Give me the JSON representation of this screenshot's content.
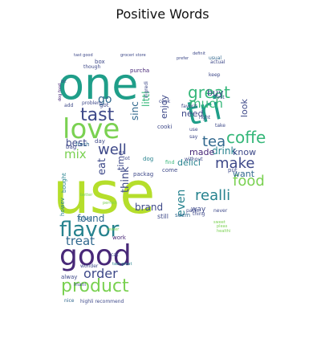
{
  "title": "Positive Words",
  "palette": {
    "yellow_green": "#b5de2b",
    "light_green": "#7ad151",
    "green": "#35b779",
    "teal": "#1f9e89",
    "blue_teal": "#26828e",
    "blue": "#31688e",
    "indigo": "#3e4989",
    "dark_purple": "#482878",
    "near_black": "#440154"
  },
  "words": [
    {
      "text": "one",
      "size": 54,
      "color": "teal"
    },
    {
      "text": "use",
      "size": 72,
      "color": "yellow_green"
    },
    {
      "text": "tri",
      "size": 40,
      "color": "teal"
    },
    {
      "text": "love",
      "size": 34,
      "color": "light_green"
    },
    {
      "text": "good",
      "size": 36,
      "color": "dark_purple"
    },
    {
      "text": "flavor",
      "size": 26,
      "color": "blue_teal"
    },
    {
      "text": "product",
      "size": 22,
      "color": "light_green"
    },
    {
      "text": "great",
      "size": 20,
      "color": "green"
    },
    {
      "text": "tast",
      "size": 22,
      "color": "indigo"
    },
    {
      "text": "coffe",
      "size": 20,
      "color": "green"
    },
    {
      "text": "tea",
      "size": 18,
      "color": "blue"
    },
    {
      "text": "make",
      "size": 18,
      "color": "indigo"
    },
    {
      "text": "food",
      "size": 18,
      "color": "light_green"
    },
    {
      "text": "realli",
      "size": 18,
      "color": "blue_teal"
    },
    {
      "text": "well",
      "size": 18,
      "color": "indigo"
    },
    {
      "text": "order",
      "size": 16,
      "color": "indigo"
    },
    {
      "text": "treat",
      "size": 15,
      "color": "blue"
    },
    {
      "text": "much",
      "size": 15,
      "color": "green"
    },
    {
      "text": "mix",
      "size": 15,
      "color": "light_green"
    },
    {
      "text": "even",
      "size": 14,
      "color": "blue_teal"
    },
    {
      "text": "found",
      "size": 12,
      "color": "blue"
    },
    {
      "text": "brand",
      "size": 12,
      "color": "indigo"
    },
    {
      "text": "think",
      "size": 13,
      "color": "indigo"
    },
    {
      "text": "eat",
      "size": 13,
      "color": "indigo"
    },
    {
      "text": "drink",
      "size": 12,
      "color": "blue_teal"
    },
    {
      "text": "made",
      "size": 11,
      "color": "dark_purple"
    },
    {
      "text": "delici",
      "size": 11,
      "color": "blue_teal"
    },
    {
      "text": "know",
      "size": 11,
      "color": "indigo"
    },
    {
      "text": "best",
      "size": 12,
      "color": "indigo"
    },
    {
      "text": "want",
      "size": 11,
      "color": "blue"
    },
    {
      "text": "enjoy",
      "size": 11,
      "color": "indigo"
    },
    {
      "text": "go",
      "size": 14,
      "color": "blue"
    },
    {
      "text": "sinc",
      "size": 12,
      "color": "blue"
    },
    {
      "text": "littl",
      "size": 12,
      "color": "green"
    },
    {
      "text": "need",
      "size": 11,
      "color": "indigo"
    },
    {
      "text": "buy",
      "size": 11,
      "color": "indigo"
    },
    {
      "text": "time",
      "size": 11,
      "color": "indigo"
    },
    {
      "text": "look",
      "size": 11,
      "color": "indigo"
    },
    {
      "text": "way",
      "size": 9,
      "color": "indigo"
    },
    {
      "text": "seem",
      "size": 7,
      "color": "blue"
    },
    {
      "text": "give",
      "size": 8,
      "color": "blue"
    },
    {
      "text": "still",
      "size": 8,
      "color": "indigo"
    },
    {
      "text": "work",
      "size": 7,
      "color": "dark_purple"
    },
    {
      "text": "packag",
      "size": 7,
      "color": "indigo"
    },
    {
      "text": "come",
      "size": 7,
      "color": "indigo"
    },
    {
      "text": "bought",
      "size": 7,
      "color": "blue_teal"
    },
    {
      "text": "howev",
      "size": 7,
      "color": "blue_teal"
    },
    {
      "text": "put",
      "size": 7,
      "color": "indigo"
    },
    {
      "text": "cooki",
      "size": 7,
      "color": "indigo"
    },
    {
      "text": "bag",
      "size": 7,
      "color": "indigo"
    },
    {
      "text": "fresh",
      "size": 7,
      "color": "blue"
    },
    {
      "text": "dog",
      "size": 7,
      "color": "blue_teal"
    },
    {
      "text": "day",
      "size": 7,
      "color": "indigo"
    },
    {
      "text": "got",
      "size": 7,
      "color": "indigo"
    },
    {
      "text": "add",
      "size": 6,
      "color": "indigo"
    },
    {
      "text": "box",
      "size": 7,
      "color": "indigo"
    },
    {
      "text": "purcha",
      "size": 7,
      "color": "dark_purple"
    },
    {
      "text": "though",
      "size": 6,
      "color": "indigo"
    },
    {
      "text": "problem",
      "size": 6,
      "color": "indigo"
    },
    {
      "text": "alway",
      "size": 7,
      "color": "indigo"
    },
    {
      "text": "wonder",
      "size": 6,
      "color": "indigo"
    },
    {
      "text": "nice",
      "size": 6,
      "color": "blue"
    },
    {
      "text": "highli recommend",
      "size": 6,
      "color": "indigo"
    },
    {
      "text": "tast great",
      "size": 5,
      "color": "blue_teal"
    },
    {
      "text": "mani",
      "size": 6,
      "color": "indigo"
    },
    {
      "text": "cat",
      "size": 6,
      "color": "indigo"
    },
    {
      "text": "lot",
      "size": 6,
      "color": "indigo"
    },
    {
      "text": "find",
      "size": 6,
      "color": "green"
    },
    {
      "text": "first",
      "size": 6,
      "color": "indigo"
    },
    {
      "text": "take",
      "size": 6,
      "color": "indigo"
    },
    {
      "text": "use",
      "size": 6,
      "color": "indigo"
    },
    {
      "text": "thing",
      "size": 6,
      "color": "indigo"
    },
    {
      "text": "without",
      "size": 6,
      "color": "indigo"
    },
    {
      "text": "never",
      "size": 6,
      "color": "indigo"
    },
    {
      "text": "say",
      "size": 6,
      "color": "indigo"
    },
    {
      "text": "actual",
      "size": 6,
      "color": "indigo"
    },
    {
      "text": "keep",
      "size": 6,
      "color": "indigo"
    },
    {
      "text": "usual",
      "size": 6,
      "color": "blue"
    },
    {
      "text": "ingredi",
      "size": 6,
      "color": "indigo"
    },
    {
      "text": "favorit",
      "size": 6,
      "color": "indigo"
    },
    {
      "text": "right",
      "size": 6,
      "color": "indigo"
    },
    {
      "text": "cook",
      "size": 6,
      "color": "indigo"
    },
    {
      "text": "pack",
      "size": 6,
      "color": "indigo"
    },
    {
      "text": "definit",
      "size": 5,
      "color": "indigo"
    },
    {
      "text": "prefer",
      "size": 5,
      "color": "indigo"
    },
    {
      "text": "groceri store",
      "size": 5,
      "color": "indigo"
    },
    {
      "text": "tast good",
      "size": 5,
      "color": "indigo"
    },
    {
      "text": "bit",
      "size": 5,
      "color": "indigo"
    },
    {
      "text": "dog food",
      "size": 5,
      "color": "dark_purple"
    },
    {
      "text": "perfect",
      "size": 5,
      "color": "light_green"
    },
    {
      "text": "better",
      "size": 5,
      "color": "light_green"
    },
    {
      "text": "water",
      "size": 5,
      "color": "light_green"
    },
    {
      "text": "sweet",
      "size": 5,
      "color": "light_green"
    },
    {
      "text": "pleas",
      "size": 5,
      "color": "light_green"
    },
    {
      "text": "healthi",
      "size": 5,
      "color": "light_green"
    }
  ]
}
